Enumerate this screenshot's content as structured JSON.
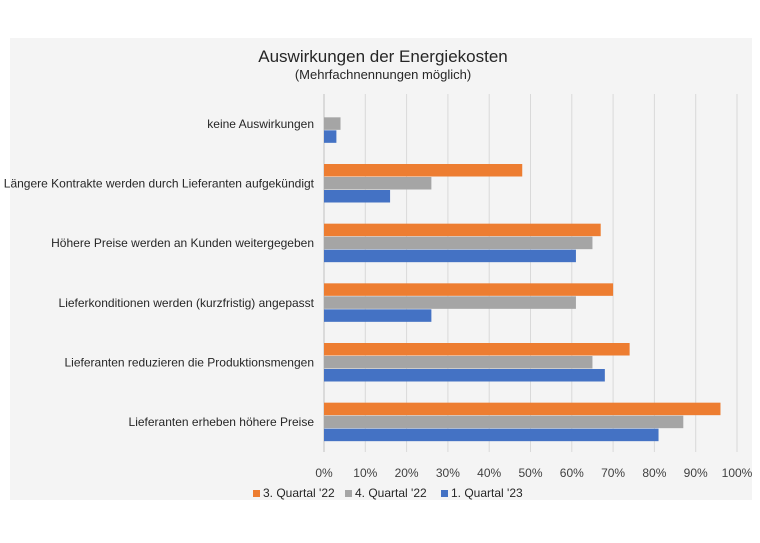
{
  "chart_data": {
    "type": "bar",
    "orientation": "horizontal",
    "title": "Auswirkungen der Energiekosten",
    "subtitle": "(Mehrfachnennungen möglich)",
    "categories": [
      "keine Auswirkungen",
      "Längere Kontrakte werden durch Lieferanten aufgekündigt",
      "Höhere Preise werden an Kunden weitergegeben",
      "Lieferkonditionen werden (kurzfristig) angepasst",
      "Lieferanten reduzieren die Produktionsmengen",
      "Lieferanten erheben höhere Preise"
    ],
    "series": [
      {
        "name": "3. Quartal '22",
        "color": "#ED7D31",
        "values": [
          0,
          48,
          67,
          70,
          74,
          96
        ]
      },
      {
        "name": "4. Quartal '22",
        "color": "#A5A5A5",
        "values": [
          4,
          26,
          65,
          61,
          65,
          87
        ]
      },
      {
        "name": "1. Quartal '23",
        "color": "#4472C4",
        "values": [
          3,
          16,
          61,
          26,
          68,
          81
        ]
      }
    ],
    "xlim": [
      0,
      100
    ],
    "x_ticks": [
      "0%",
      "10%",
      "20%",
      "30%",
      "40%",
      "50%",
      "60%",
      "70%",
      "80%",
      "90%",
      "100%"
    ],
    "grid": true,
    "legend_position": "bottom-left"
  }
}
